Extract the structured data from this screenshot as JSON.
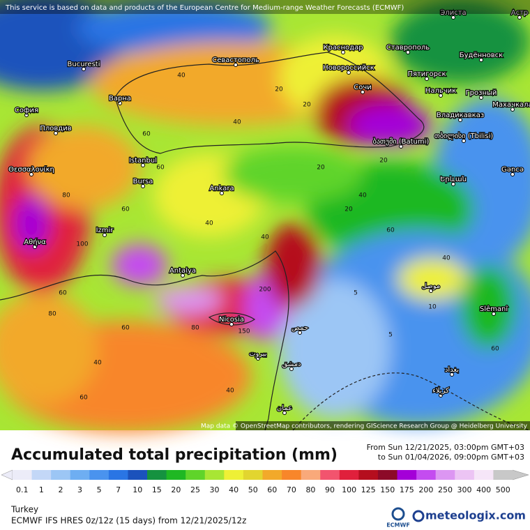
{
  "header": {
    "notice": "This service is based on data and products of the European Centre for Medium-range Weather Forecasts (ECMWF)",
    "attribution": "Map data © OpenStreetMap contributors, rendering GIScience Research Group @ Heidelberg University"
  },
  "map": {
    "places": [
      "Bucuresti",
      "София",
      "Пловдив",
      "Варна",
      "Θεσσαλονίκη",
      "Istanbul",
      "Bursa",
      "Izmir",
      "Αθήνα",
      "Ankara",
      "Antalya",
      "Nicosia",
      "Севастополь",
      "Краснодар",
      "Новороссийск",
      "Ставрополь",
      "Сочи",
      "Пятигорск",
      "Нальчик",
      "Грозный",
      "Будённовск",
      "Владикавказ",
      "Махачкала",
      "ბათუმი (Batumi)",
      "თბილისი (Tbilisi)",
      "Gəncə",
      "Երևան",
      "Slêmanî",
      "Элиста",
      "حمص",
      "بيروت",
      "دمشق",
      "عمان",
      "موصل",
      "بغداد",
      "كربلاء",
      "Астр"
    ],
    "contour_labels": [
      40,
      60,
      20,
      40,
      60,
      80,
      100,
      40,
      60,
      20,
      40,
      60,
      40,
      20,
      5,
      60,
      80,
      40,
      150,
      200,
      60,
      40,
      20,
      10,
      5,
      40,
      60,
      20,
      60,
      80
    ]
  },
  "legend": {
    "title": "Accumulated total precipitation (mm)",
    "period_from": "From Sun 12/21/2025, 03:00pm GMT+03",
    "period_to": "to Sun 01/04/2026, 09:00pm GMT+03",
    "scale": [
      {
        "value": 0.1,
        "color": "#ececf8"
      },
      {
        "value": 1,
        "color": "#c3d7f7"
      },
      {
        "value": 2,
        "color": "#9cc6f5"
      },
      {
        "value": 3,
        "color": "#6eaef2"
      },
      {
        "value": 5,
        "color": "#4a93ee"
      },
      {
        "value": 7,
        "color": "#2a75e4"
      },
      {
        "value": 10,
        "color": "#1b52bc"
      },
      {
        "value": 15,
        "color": "#159240"
      },
      {
        "value": 20,
        "color": "#1fb823"
      },
      {
        "value": 25,
        "color": "#5fd42a"
      },
      {
        "value": 30,
        "color": "#a8e634"
      },
      {
        "value": 40,
        "color": "#eef036"
      },
      {
        "value": 50,
        "color": "#e2d52f"
      },
      {
        "value": 60,
        "color": "#f2a92a"
      },
      {
        "value": 70,
        "color": "#f8862a"
      },
      {
        "value": 80,
        "color": "#f9a97a"
      },
      {
        "value": 90,
        "color": "#f2546e"
      },
      {
        "value": 100,
        "color": "#e0203c"
      },
      {
        "value": 125,
        "color": "#b50e1e"
      },
      {
        "value": 150,
        "color": "#8c0a28"
      },
      {
        "value": 175,
        "color": "#a400d8"
      },
      {
        "value": 200,
        "color": "#c44cf0"
      },
      {
        "value": 250,
        "color": "#dc96f2"
      },
      {
        "value": 300,
        "color": "#ecc4f4"
      },
      {
        "value": 400,
        "color": "#f6e6f8"
      },
      {
        "value": 500,
        "color": "#c8c8c8"
      }
    ]
  },
  "footer": {
    "region": "Turkey",
    "model": "ECMWF IFS HRES 0z/12z (15 days) from 12/21/2025/12z",
    "ecmwf_logo": "ECMWF",
    "brand": "meteologix.com"
  }
}
